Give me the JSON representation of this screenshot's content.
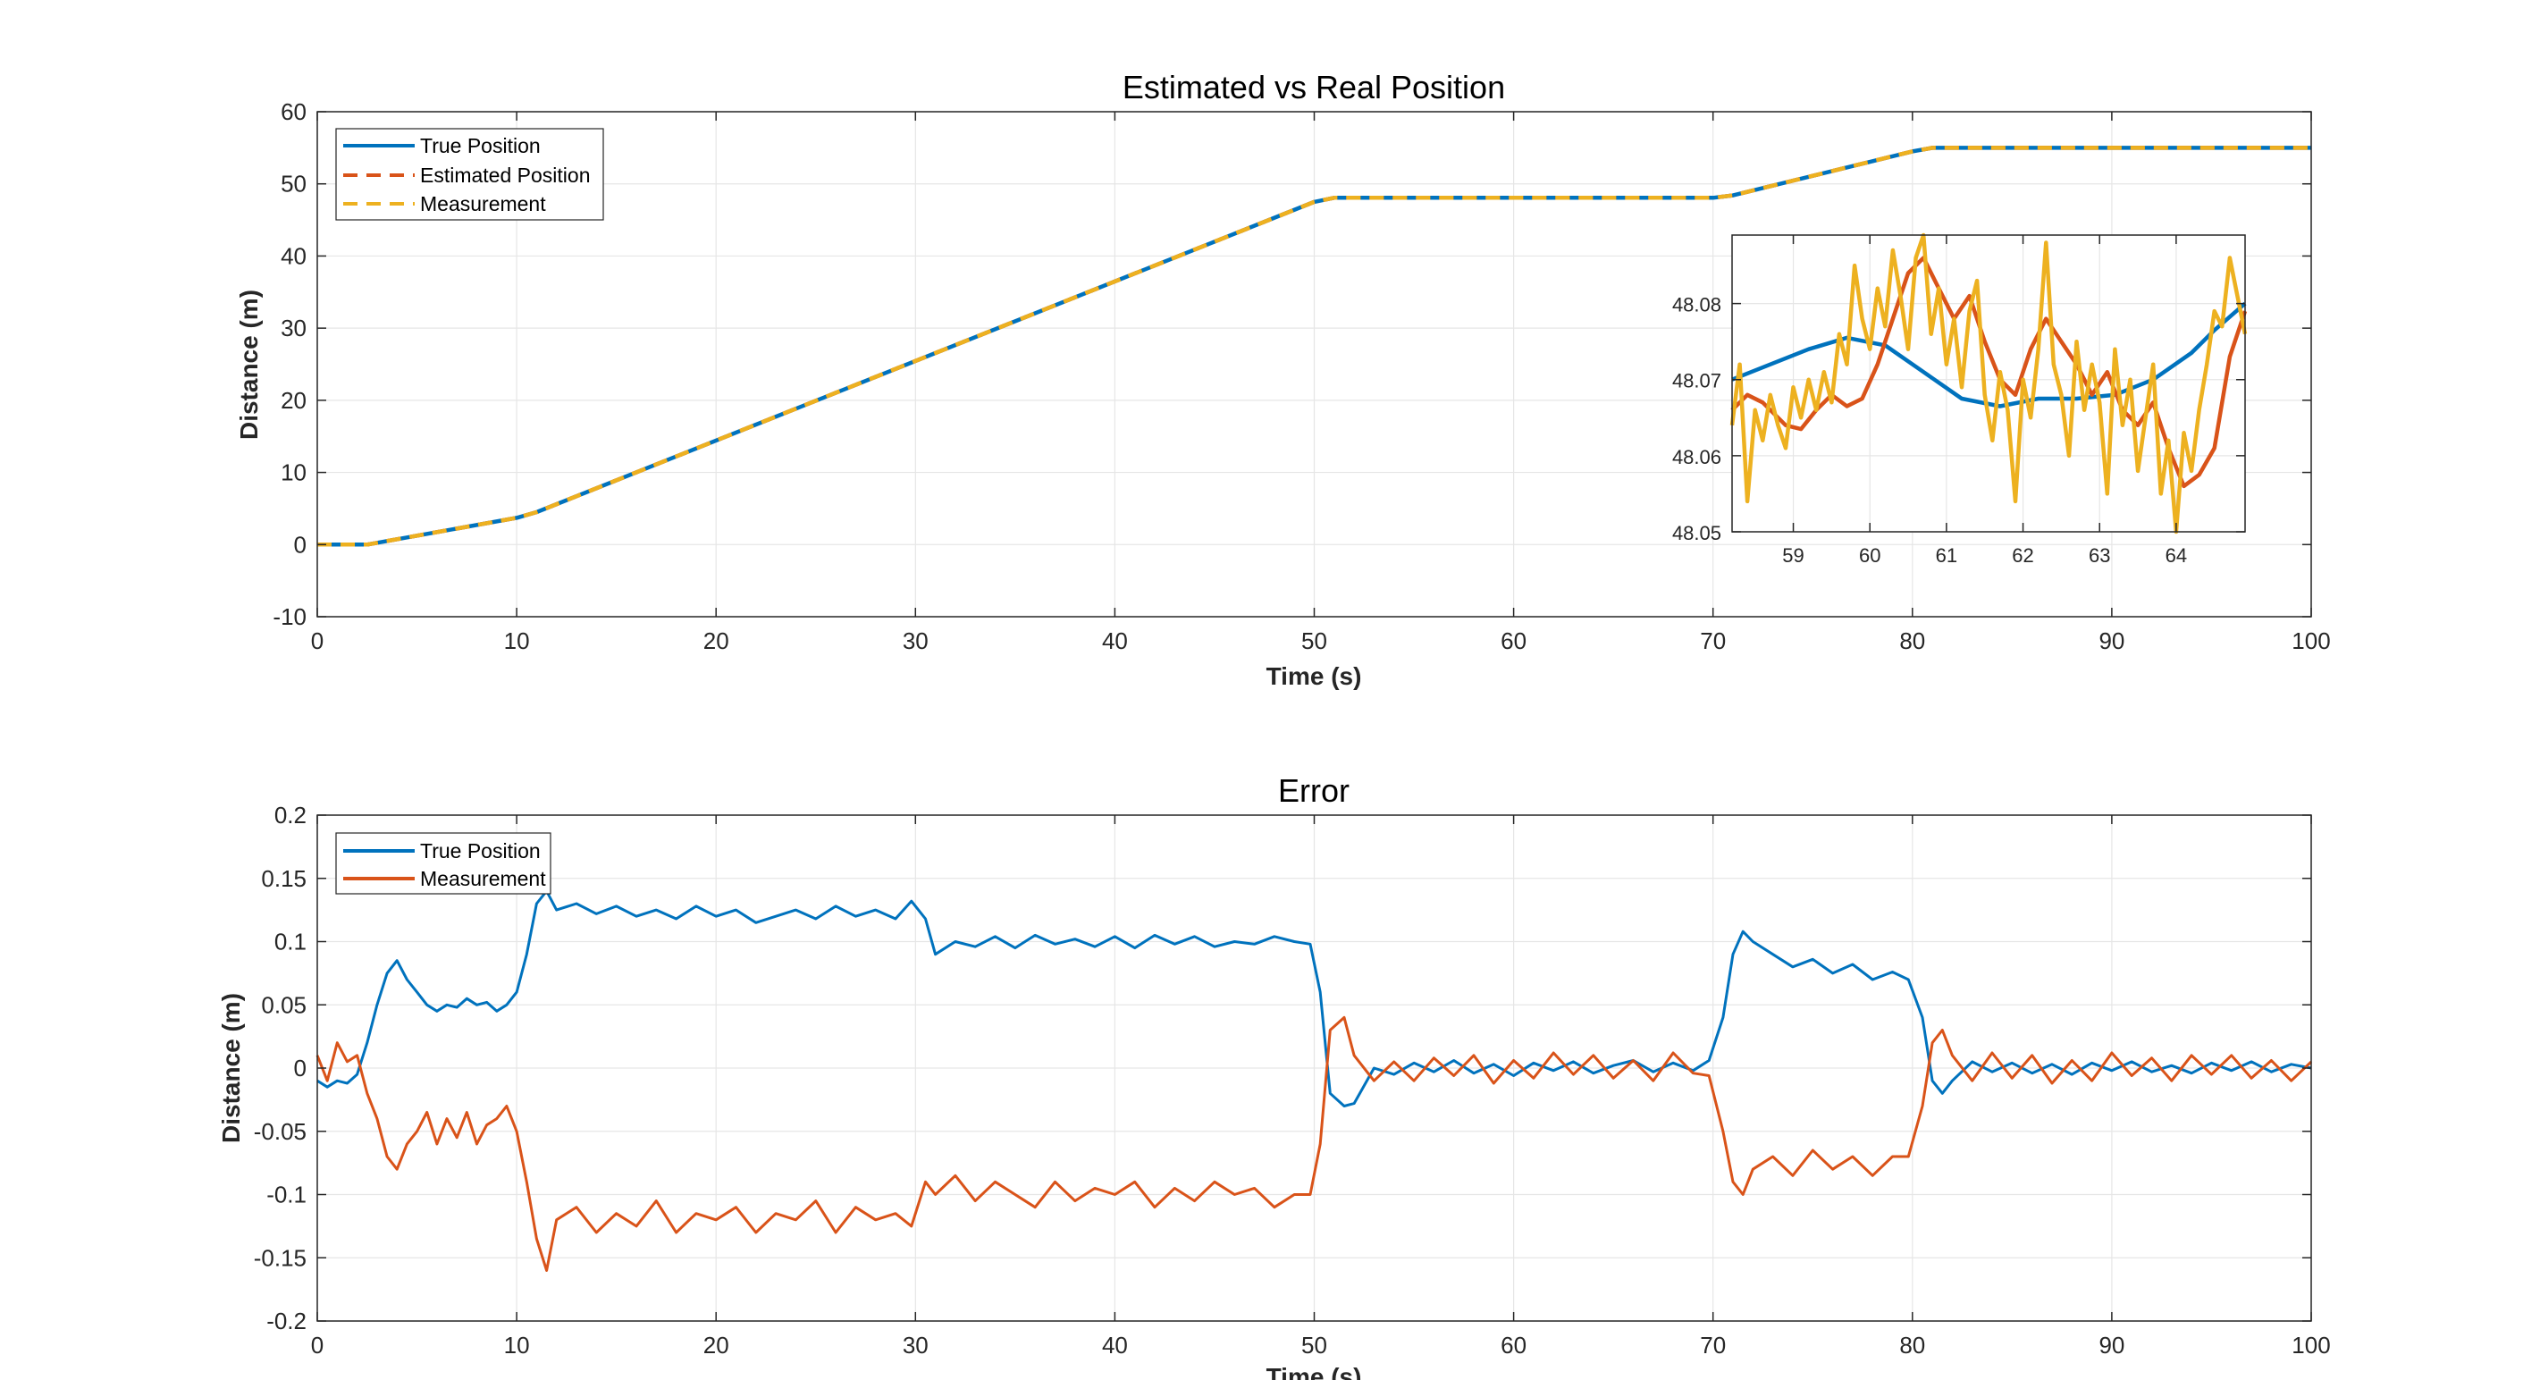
{
  "chart_data": [
    {
      "type": "line",
      "title": "Estimated vs Real Position",
      "xlabel": "Time (s)",
      "ylabel": "Distance (m)",
      "xlim": [
        0,
        100
      ],
      "ylim": [
        -10,
        60
      ],
      "xticks": [
        0,
        10,
        20,
        30,
        40,
        50,
        60,
        70,
        80,
        90,
        100
      ],
      "yticks": [
        -10,
        0,
        10,
        20,
        30,
        40,
        50,
        60
      ],
      "grid": true,
      "legend_position": "top-left",
      "series": [
        {
          "name": "True Position",
          "color": "#0072BD",
          "style": "solid",
          "x": [
            0,
            2.5,
            10,
            11,
            50,
            51,
            70,
            71,
            80,
            81,
            100
          ],
          "y": [
            0,
            0,
            3.7,
            4.5,
            47.5,
            48.07,
            48.07,
            48.4,
            54.5,
            55,
            55
          ]
        },
        {
          "name": "Estimated Position",
          "color": "#D95319",
          "style": "dashed",
          "x": [
            0,
            2.5,
            10,
            11,
            50,
            51,
            70,
            71,
            80,
            81,
            100
          ],
          "y": [
            0,
            0,
            3.7,
            4.5,
            47.5,
            48.07,
            48.07,
            48.4,
            54.5,
            55,
            55
          ]
        },
        {
          "name": "Measurement",
          "color": "#EDB120",
          "style": "dashed",
          "x": [
            0,
            2.5,
            10,
            11,
            50,
            51,
            70,
            71,
            80,
            81,
            100
          ],
          "y": [
            0,
            0,
            3.7,
            4.5,
            47.5,
            48.07,
            48.07,
            48.4,
            54.5,
            55,
            55
          ]
        }
      ],
      "inset": {
        "xlim": [
          58.2,
          64.9
        ],
        "ylim": [
          48.05,
          48.089
        ],
        "xticks": [
          59,
          60,
          61,
          62,
          63,
          64
        ],
        "yticks": [
          48.05,
          48.06,
          48.07,
          48.08
        ],
        "ytick_labels": [
          "48.05",
          "48.06",
          "48.07",
          "48.08"
        ],
        "series": [
          {
            "name": "True Position",
            "color": "#0072BD",
            "x": [
              58.2,
              58.7,
              59.2,
              59.7,
              60.2,
              60.7,
              61.2,
              61.7,
              62.2,
              62.7,
              63.2,
              63.7,
              64.2,
              64.5,
              64.9
            ],
            "y": [
              48.07,
              48.072,
              48.074,
              48.0755,
              48.0745,
              48.071,
              48.0675,
              48.0665,
              48.0675,
              48.0675,
              48.068,
              48.07,
              48.0735,
              48.0765,
              48.08
            ]
          },
          {
            "name": "Estimated Position",
            "color": "#D95319",
            "x": [
              58.2,
              58.4,
              58.6,
              58.9,
              59.1,
              59.3,
              59.5,
              59.7,
              59.9,
              60.1,
              60.3,
              60.5,
              60.7,
              60.9,
              61.1,
              61.3,
              61.5,
              61.7,
              61.9,
              62.1,
              62.3,
              62.5,
              62.7,
              62.9,
              63.1,
              63.3,
              63.5,
              63.7,
              63.9,
              64.1,
              64.3,
              64.5,
              64.7,
              64.9
            ],
            "y": [
              48.066,
              48.068,
              48.067,
              48.064,
              48.0635,
              48.066,
              48.068,
              48.0665,
              48.0675,
              48.072,
              48.078,
              48.084,
              48.086,
              48.082,
              48.078,
              48.081,
              48.075,
              48.07,
              48.068,
              48.074,
              48.078,
              48.075,
              48.072,
              48.068,
              48.071,
              48.066,
              48.064,
              48.067,
              48.061,
              48.056,
              48.0575,
              48.061,
              48.073,
              48.079
            ]
          },
          {
            "name": "Measurement",
            "color": "#EDB120",
            "x": [
              58.2,
              58.3,
              58.4,
              58.5,
              58.6,
              58.7,
              58.8,
              58.9,
              59.0,
              59.1,
              59.2,
              59.3,
              59.4,
              59.5,
              59.6,
              59.7,
              59.8,
              59.9,
              60.0,
              60.1,
              60.2,
              60.3,
              60.4,
              60.5,
              60.6,
              60.7,
              60.8,
              60.9,
              61.0,
              61.1,
              61.2,
              61.3,
              61.4,
              61.5,
              61.6,
              61.7,
              61.8,
              61.9,
              62.0,
              62.1,
              62.2,
              62.3,
              62.4,
              62.5,
              62.6,
              62.7,
              62.8,
              62.9,
              63.0,
              63.1,
              63.2,
              63.3,
              63.4,
              63.5,
              63.6,
              63.7,
              63.8,
              63.9,
              64.0,
              64.1,
              64.2,
              64.3,
              64.4,
              64.5,
              64.6,
              64.7,
              64.8,
              64.9
            ],
            "y": [
              48.064,
              48.072,
              48.054,
              48.066,
              48.062,
              48.068,
              48.064,
              48.061,
              48.069,
              48.065,
              48.07,
              48.066,
              48.071,
              48.067,
              48.076,
              48.072,
              48.085,
              48.078,
              48.074,
              48.082,
              48.077,
              48.087,
              48.081,
              48.074,
              48.086,
              48.089,
              48.076,
              48.082,
              48.072,
              48.078,
              48.069,
              48.079,
              48.083,
              48.068,
              48.062,
              48.071,
              48.066,
              48.054,
              48.07,
              48.065,
              48.074,
              48.088,
              48.072,
              48.068,
              48.06,
              48.075,
              48.066,
              48.072,
              48.067,
              48.055,
              48.074,
              48.064,
              48.07,
              48.058,
              48.065,
              48.072,
              48.055,
              48.062,
              48.05,
              48.063,
              48.058,
              48.066,
              48.072,
              48.079,
              48.077,
              48.086,
              48.081,
              48.076
            ]
          }
        ]
      }
    },
    {
      "type": "line",
      "title": "Error",
      "xlabel": "Time (s)",
      "ylabel": "Distance (m)",
      "xlim": [
        0,
        100
      ],
      "ylim": [
        -0.2,
        0.2
      ],
      "xticks": [
        0,
        10,
        20,
        30,
        40,
        50,
        60,
        70,
        80,
        90,
        100
      ],
      "yticks": [
        -0.2,
        -0.15,
        -0.1,
        -0.05,
        0,
        0.05,
        0.1,
        0.15,
        0.2
      ],
      "ytick_labels": [
        "-0.2",
        "-0.15",
        "-0.1",
        "-0.05",
        "0",
        "0.05",
        "0.1",
        "0.15",
        "0.2"
      ],
      "grid": true,
      "legend_position": "top-left",
      "series": [
        {
          "name": "True Position",
          "color": "#0072BD",
          "x": [
            0,
            0.5,
            1.0,
            1.5,
            2.0,
            2.5,
            3.0,
            3.5,
            4.0,
            4.5,
            5.0,
            5.5,
            6.0,
            6.5,
            7.0,
            7.5,
            8.0,
            8.5,
            9.0,
            9.5,
            10.0,
            10.5,
            11.0,
            11.5,
            12.0,
            13.0,
            14.0,
            15.0,
            16.0,
            17.0,
            18.0,
            19.0,
            20.0,
            21.0,
            22.0,
            23.0,
            24.0,
            25.0,
            26.0,
            27.0,
            28.0,
            29.0,
            29.8,
            30.5,
            31.0,
            32.0,
            33.0,
            34.0,
            35.0,
            36.0,
            37.0,
            38.0,
            39.0,
            40.0,
            41.0,
            42.0,
            43.0,
            44.0,
            45.0,
            46.0,
            47.0,
            48.0,
            49.0,
            49.8,
            50.3,
            50.8,
            51.5,
            52.0,
            53.0,
            54.0,
            55.0,
            56.0,
            57.0,
            58.0,
            59.0,
            60.0,
            61.0,
            62.0,
            63.0,
            64.0,
            65.0,
            66.0,
            67.0,
            68.0,
            69.0,
            69.8,
            70.5,
            71.0,
            71.5,
            72.0,
            73.0,
            74.0,
            75.0,
            76.0,
            77.0,
            78.0,
            79.0,
            79.8,
            80.5,
            81.0,
            81.5,
            82.0,
            83.0,
            84.0,
            85.0,
            86.0,
            87.0,
            88.0,
            89.0,
            90.0,
            91.0,
            92.0,
            93.0,
            94.0,
            95.0,
            96.0,
            97.0,
            98.0,
            99.0,
            100.0
          ],
          "y": [
            -0.01,
            -0.015,
            -0.01,
            -0.012,
            -0.005,
            0.02,
            0.05,
            0.075,
            0.085,
            0.07,
            0.06,
            0.05,
            0.045,
            0.05,
            0.048,
            0.055,
            0.05,
            0.052,
            0.045,
            0.05,
            0.06,
            0.09,
            0.13,
            0.14,
            0.125,
            0.13,
            0.122,
            0.128,
            0.12,
            0.125,
            0.118,
            0.128,
            0.12,
            0.125,
            0.115,
            0.12,
            0.125,
            0.118,
            0.128,
            0.12,
            0.125,
            0.118,
            0.132,
            0.118,
            0.09,
            0.1,
            0.096,
            0.104,
            0.095,
            0.105,
            0.098,
            0.102,
            0.096,
            0.104,
            0.095,
            0.105,
            0.098,
            0.104,
            0.096,
            0.1,
            0.098,
            0.104,
            0.1,
            0.098,
            0.06,
            -0.02,
            -0.03,
            -0.028,
            0.0,
            -0.005,
            0.004,
            -0.003,
            0.006,
            -0.004,
            0.003,
            -0.006,
            0.004,
            -0.002,
            0.005,
            -0.004,
            0.002,
            0.006,
            -0.003,
            0.004,
            -0.002,
            0.006,
            0.04,
            0.09,
            0.108,
            0.1,
            0.09,
            0.08,
            0.086,
            0.075,
            0.082,
            0.07,
            0.076,
            0.07,
            0.04,
            -0.01,
            -0.02,
            -0.01,
            0.005,
            -0.003,
            0.004,
            -0.004,
            0.003,
            -0.005,
            0.004,
            -0.002,
            0.005,
            -0.003,
            0.002,
            -0.004,
            0.004,
            -0.002,
            0.005,
            -0.003,
            0.003,
            0.0
          ]
        },
        {
          "name": "Measurement",
          "color": "#D95319",
          "x": [
            0,
            0.5,
            1.0,
            1.5,
            2.0,
            2.5,
            3.0,
            3.5,
            4.0,
            4.5,
            5.0,
            5.5,
            6.0,
            6.5,
            7.0,
            7.5,
            8.0,
            8.5,
            9.0,
            9.5,
            10.0,
            10.5,
            11.0,
            11.5,
            12.0,
            13.0,
            14.0,
            15.0,
            16.0,
            17.0,
            18.0,
            19.0,
            20.0,
            21.0,
            22.0,
            23.0,
            24.0,
            25.0,
            26.0,
            27.0,
            28.0,
            29.0,
            29.8,
            30.5,
            31.0,
            32.0,
            33.0,
            34.0,
            35.0,
            36.0,
            37.0,
            38.0,
            39.0,
            40.0,
            41.0,
            42.0,
            43.0,
            44.0,
            45.0,
            46.0,
            47.0,
            48.0,
            49.0,
            49.8,
            50.3,
            50.8,
            51.5,
            52.0,
            53.0,
            54.0,
            55.0,
            56.0,
            57.0,
            58.0,
            59.0,
            60.0,
            61.0,
            62.0,
            63.0,
            64.0,
            65.0,
            66.0,
            67.0,
            68.0,
            69.0,
            69.8,
            70.5,
            71.0,
            71.5,
            72.0,
            73.0,
            74.0,
            75.0,
            76.0,
            77.0,
            78.0,
            79.0,
            79.8,
            80.5,
            81.0,
            81.5,
            82.0,
            83.0,
            84.0,
            85.0,
            86.0,
            87.0,
            88.0,
            89.0,
            90.0,
            91.0,
            92.0,
            93.0,
            94.0,
            95.0,
            96.0,
            97.0,
            98.0,
            99.0,
            100.0
          ],
          "y": [
            0.01,
            -0.01,
            0.02,
            0.005,
            0.01,
            -0.02,
            -0.04,
            -0.07,
            -0.08,
            -0.06,
            -0.05,
            -0.035,
            -0.06,
            -0.04,
            -0.055,
            -0.035,
            -0.06,
            -0.045,
            -0.04,
            -0.03,
            -0.05,
            -0.09,
            -0.135,
            -0.16,
            -0.12,
            -0.11,
            -0.13,
            -0.115,
            -0.125,
            -0.105,
            -0.13,
            -0.115,
            -0.12,
            -0.11,
            -0.13,
            -0.115,
            -0.12,
            -0.105,
            -0.13,
            -0.11,
            -0.12,
            -0.115,
            -0.125,
            -0.09,
            -0.1,
            -0.085,
            -0.105,
            -0.09,
            -0.1,
            -0.11,
            -0.09,
            -0.105,
            -0.095,
            -0.1,
            -0.09,
            -0.11,
            -0.095,
            -0.105,
            -0.09,
            -0.1,
            -0.095,
            -0.11,
            -0.1,
            -0.1,
            -0.06,
            0.03,
            0.04,
            0.01,
            -0.01,
            0.005,
            -0.01,
            0.008,
            -0.006,
            0.01,
            -0.012,
            0.006,
            -0.008,
            0.012,
            -0.005,
            0.01,
            -0.008,
            0.006,
            -0.01,
            0.012,
            -0.004,
            -0.006,
            -0.05,
            -0.09,
            -0.1,
            -0.08,
            -0.07,
            -0.085,
            -0.065,
            -0.08,
            -0.07,
            -0.085,
            -0.07,
            -0.07,
            -0.03,
            0.02,
            0.03,
            0.01,
            -0.01,
            0.012,
            -0.008,
            0.01,
            -0.012,
            0.006,
            -0.01,
            0.012,
            -0.006,
            0.008,
            -0.01,
            0.01,
            -0.005,
            0.01,
            -0.008,
            0.006,
            -0.01,
            0.005
          ]
        }
      ]
    }
  ]
}
